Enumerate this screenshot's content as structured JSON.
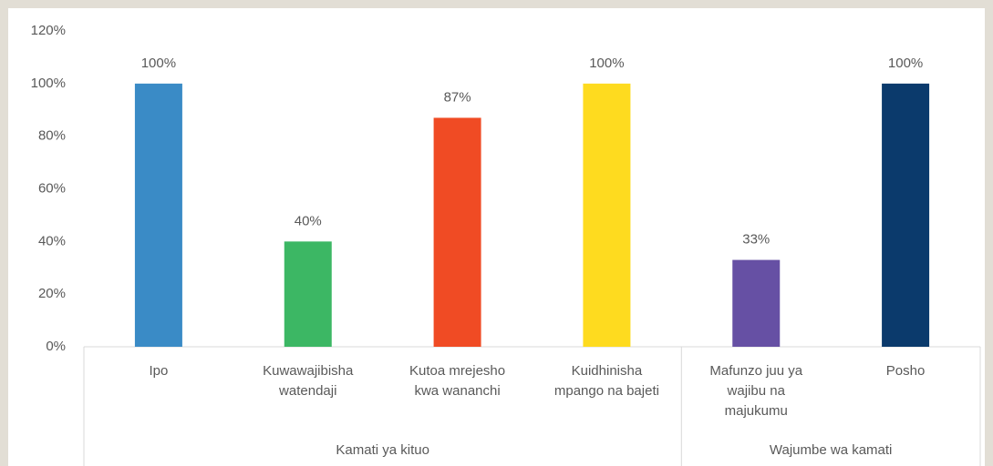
{
  "chart_data": {
    "type": "bar",
    "categories": [
      "Ipo",
      "Kuwawajibisha watendaji",
      "Kutoa mrejesho kwa wananchi",
      "Kuidhinisha mpango na bajeti",
      "Mafunzo juu ya wajibu na majukumu",
      "Posho"
    ],
    "groups": [
      {
        "label": "Kamati ya kituo",
        "count": 4
      },
      {
        "label": "Wajumbe wa kamati",
        "count": 2
      }
    ],
    "values": [
      100,
      40,
      87,
      100,
      33,
      100
    ],
    "value_labels": [
      "100%",
      "40%",
      "87%",
      "100%",
      "33%",
      "100%"
    ],
    "colors": [
      "#3a8bc6",
      "#3cb764",
      "#f04b24",
      "#fedb1f",
      "#6650a4",
      "#0b3a6c"
    ],
    "ylim": [
      0,
      120
    ],
    "yticks": [
      {
        "value": 0,
        "label": "0%"
      },
      {
        "value": 20,
        "label": "20%"
      },
      {
        "value": 40,
        "label": "40%"
      },
      {
        "value": 60,
        "label": "60%"
      },
      {
        "value": 80,
        "label": "80%"
      },
      {
        "value": 100,
        "label": "100%"
      },
      {
        "value": 120,
        "label": "120%"
      }
    ],
    "grid": false
  }
}
